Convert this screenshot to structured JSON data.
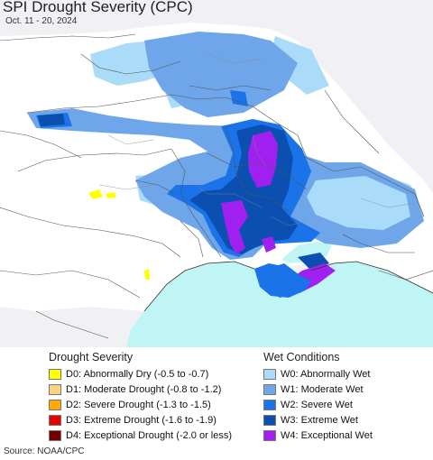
{
  "header": {
    "title": "SPI Drought Severity (CPC)",
    "date_range": "Oct. 11 - 20, 2024"
  },
  "legend": {
    "drought": {
      "title": "Drought Severity",
      "items": [
        {
          "code": "D0",
          "label": "D0: Abnormally Dry (-0.5 to -0.7)",
          "color": "#ffff00"
        },
        {
          "code": "D1",
          "label": "D1: Moderate Drought (-0.8 to -1.2)",
          "color": "#fcd37f"
        },
        {
          "code": "D2",
          "label": "D2: Severe Drought (-1.3 to -1.5)",
          "color": "#ffaa00"
        },
        {
          "code": "D3",
          "label": "D3: Extreme Drought (-1.6 to -1.9)",
          "color": "#e60000"
        },
        {
          "code": "D4",
          "label": "D4: Exceptional Drought (-2.0 or less)",
          "color": "#730000"
        }
      ]
    },
    "wet": {
      "title": "Wet Conditions",
      "items": [
        {
          "code": "W0",
          "label": "W0: Abnormally Wet",
          "color": "#aadbf9"
        },
        {
          "code": "W1",
          "label": "W1: Moderate Wet",
          "color": "#6fa6ea"
        },
        {
          "code": "W2",
          "label": "W2: Severe Wet",
          "color": "#1a73e8"
        },
        {
          "code": "W3",
          "label": "W3: Extreme Wet",
          "color": "#0b4fb0"
        },
        {
          "code": "W4",
          "label": "W4: Exceptional Wet",
          "color": "#a020f0"
        }
      ]
    }
  },
  "footer": {
    "source": "Source: NOAA/CPC"
  },
  "map": {
    "colors": {
      "background_land": "#f0f0f5",
      "normal": "#ffffff",
      "sea": "#bff5f5",
      "border": "#555555"
    }
  }
}
